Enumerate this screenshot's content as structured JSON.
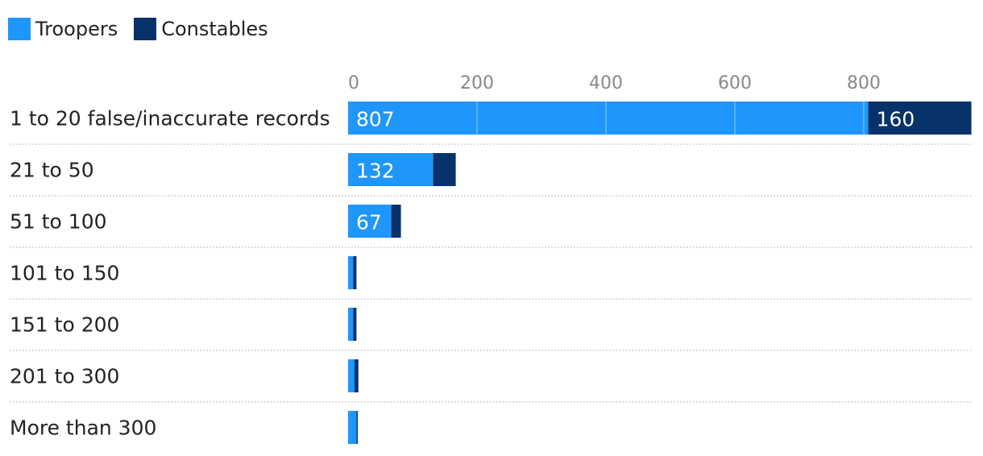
{
  "chart_data": {
    "type": "bar",
    "orientation": "horizontal",
    "stacked": true,
    "title": "",
    "xlabel": "",
    "ylabel": "",
    "xlim": [
      0,
      970
    ],
    "x_ticks": [
      0,
      200,
      400,
      600,
      800
    ],
    "grid": true,
    "legend_position": "top-left",
    "categories": [
      "1 to 20 false/inaccurate records",
      "21 to 50",
      "51 to 100",
      "101 to 150",
      "151 to 200",
      "201 to 300",
      "More than 300"
    ],
    "series": [
      {
        "name": "Troopers",
        "color": "#1e96fc",
        "values": [
          807,
          132,
          67,
          8,
          8,
          10,
          13
        ],
        "labels": [
          "807",
          "132",
          "67",
          "",
          "",
          "",
          ""
        ]
      },
      {
        "name": "Constables",
        "color": "#08326a",
        "values": [
          160,
          35,
          15,
          5,
          5,
          6,
          2
        ],
        "labels": [
          "160",
          "",
          "",
          "",
          "",
          "",
          ""
        ]
      }
    ]
  }
}
